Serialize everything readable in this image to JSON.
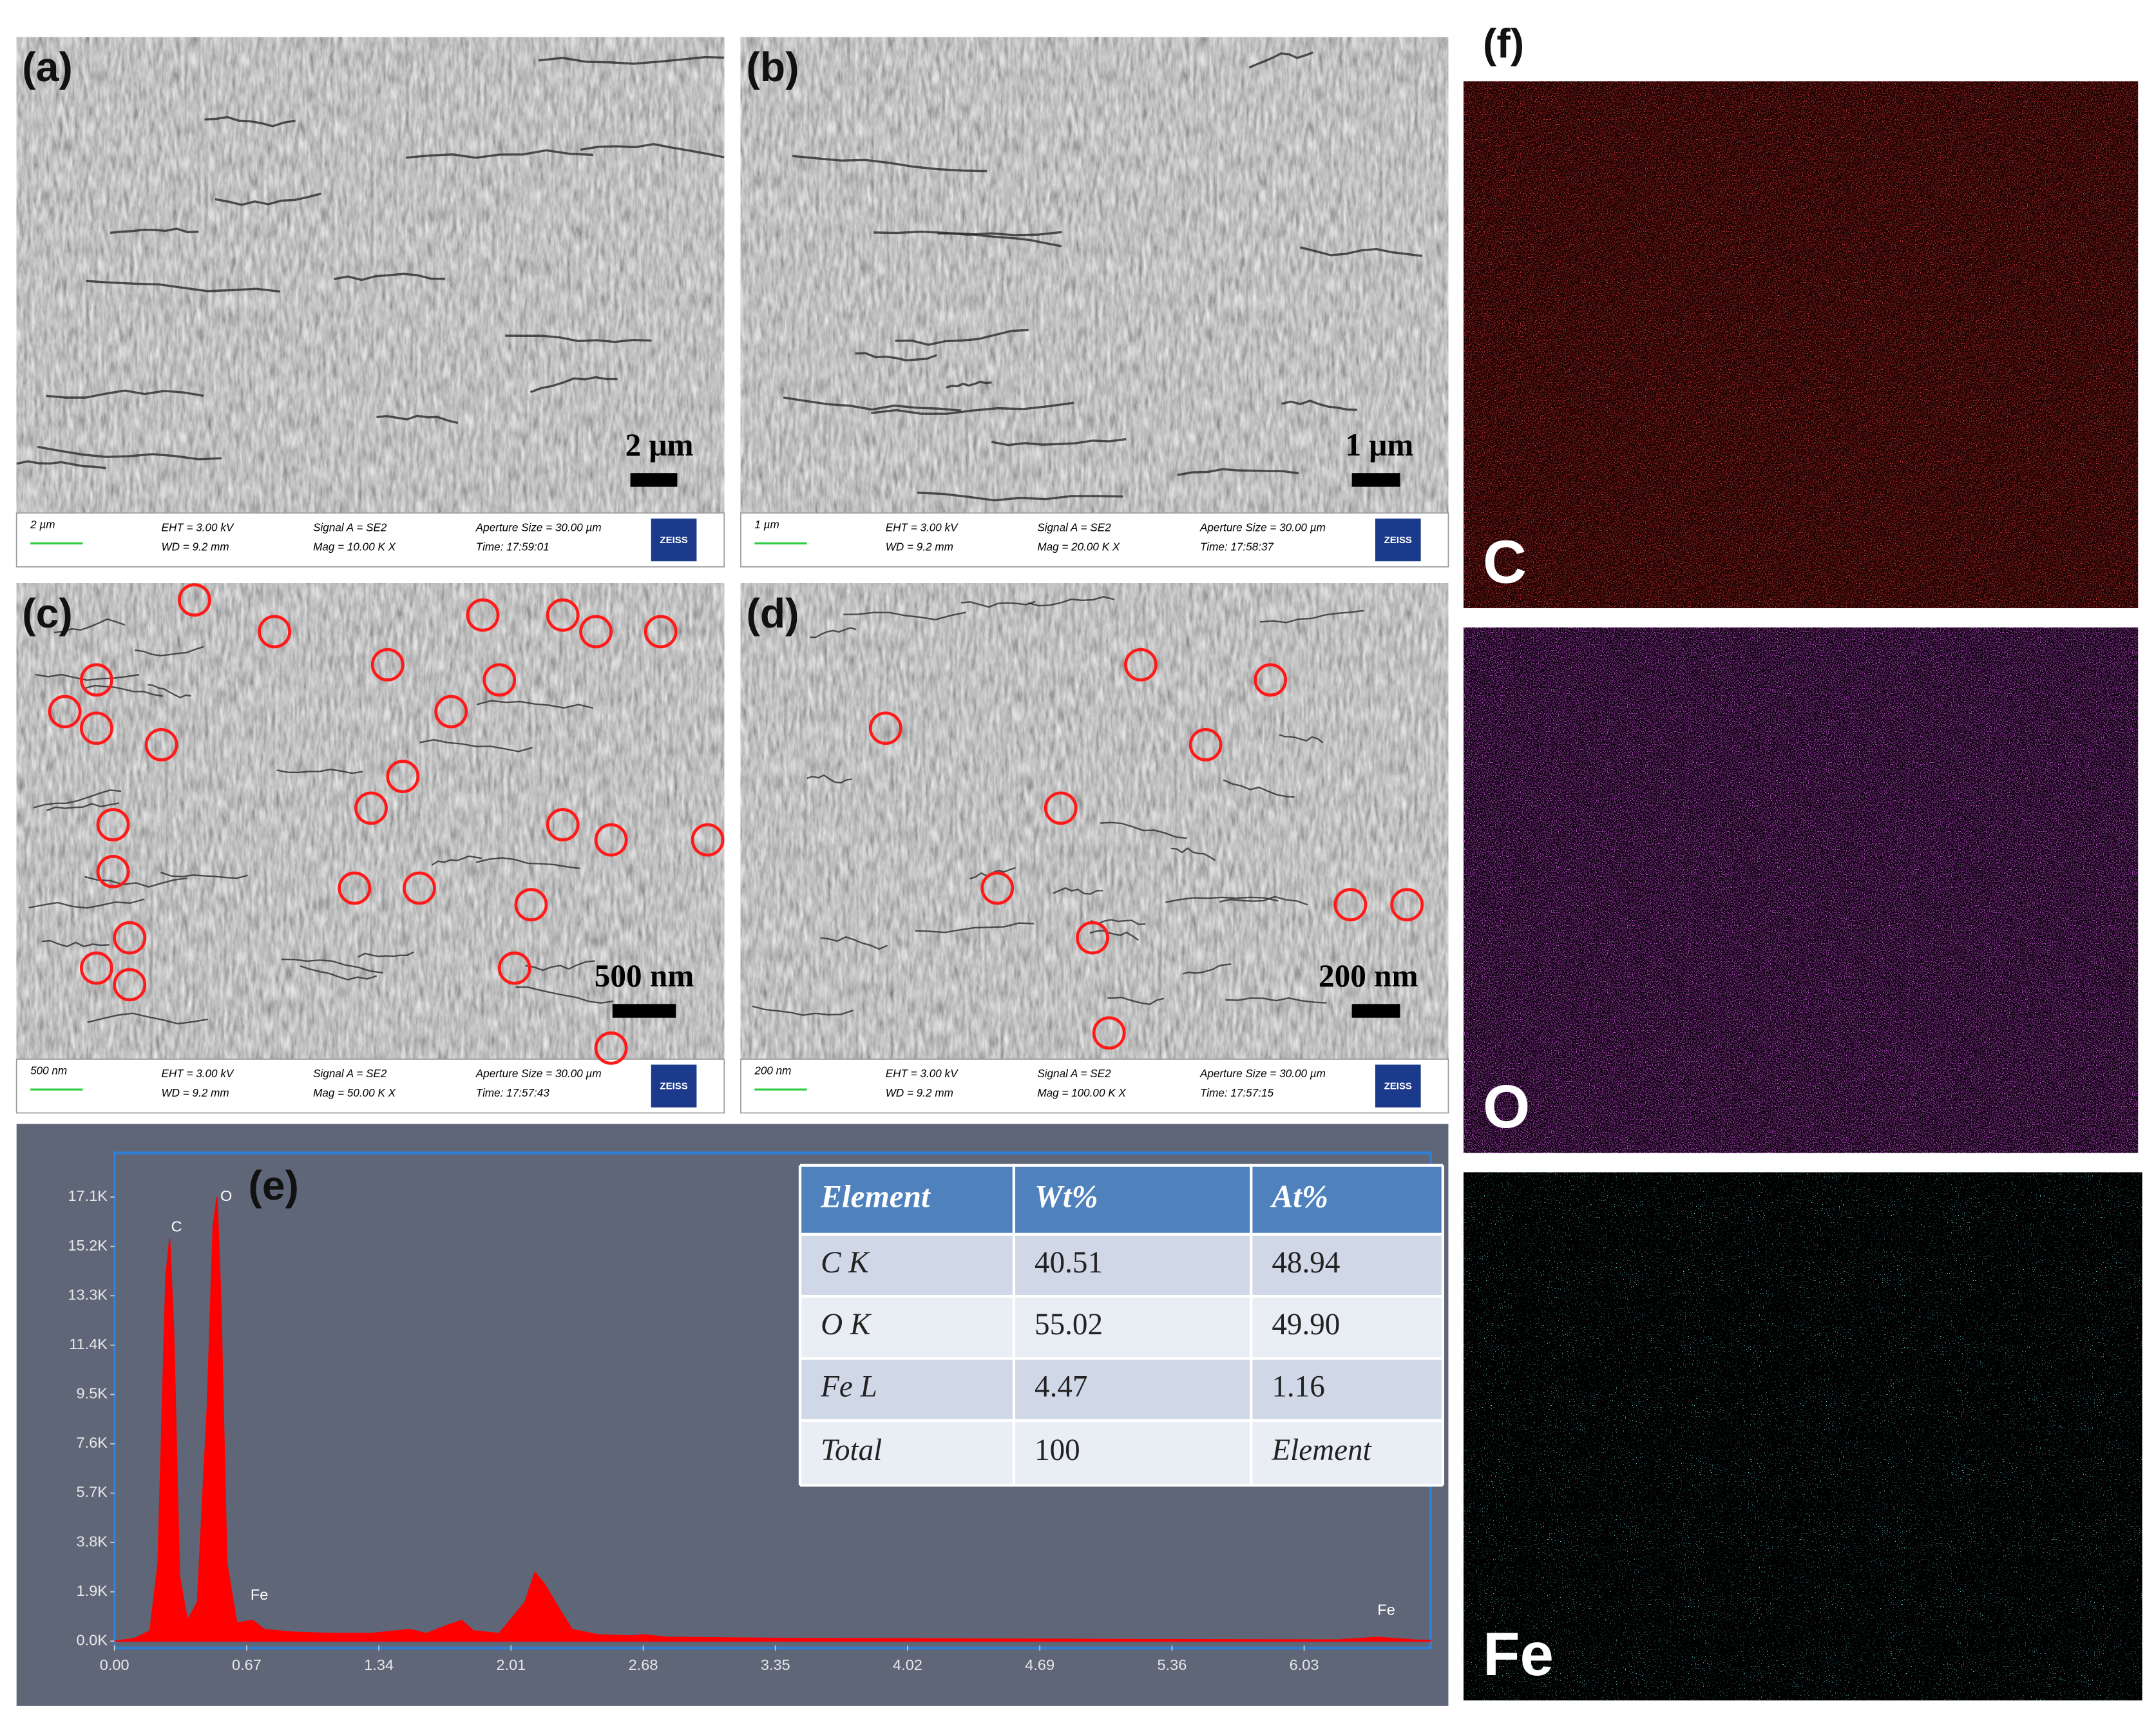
{
  "figure": {
    "panels": [
      {
        "label": "(a)",
        "scale_bar": "2 μm",
        "info": {
          "scale": "2 µm",
          "eht": "EHT =  3.00 kV",
          "wd": "WD =  9.2 mm",
          "signal": "Signal A = SE2",
          "mag": "Mag =  10.00 K X",
          "aperture": "Aperture Size = 30.00 µm",
          "time": "Time: 17:59:01",
          "brand": "ZEISS"
        }
      },
      {
        "label": "(b)",
        "scale_bar": "1 μm",
        "info": {
          "scale": "1 µm",
          "eht": "EHT =  3.00 kV",
          "wd": "WD =  9.2 mm",
          "signal": "Signal A = SE2",
          "mag": "Mag =  20.00 K X",
          "aperture": "Aperture Size = 30.00 µm",
          "time": "Time: 17:58:37",
          "brand": "ZEISS"
        }
      },
      {
        "label": "(c)",
        "scale_bar": "500 nm",
        "info": {
          "scale": "500 nm",
          "eht": "EHT =  3.00 kV",
          "wd": "WD =  9.2 mm",
          "signal": "Signal A = SE2",
          "mag": "Mag =  50.00 K X",
          "aperture": "Aperture Size = 30.00 µm",
          "time": "Time: 17:57:43",
          "brand": "ZEISS"
        }
      },
      {
        "label": "(d)",
        "scale_bar": "200 nm",
        "info": {
          "scale": "200 nm",
          "eht": "EHT =  3.00 kV",
          "wd": "WD =  9.2 mm",
          "signal": "Signal A = SE2",
          "mag": "Mag =  100.00 K X",
          "aperture": "Aperture Size = 30.00 µm",
          "time": "Time: 17:57:15",
          "brand": "ZEISS"
        }
      }
    ],
    "spectrum": {
      "type": "area",
      "label": "(e)",
      "color": "#ff0000",
      "x": [
        0,
        0.1,
        0.18,
        0.22,
        0.26,
        0.28,
        0.3,
        0.33,
        0.37,
        0.42,
        0.47,
        0.5,
        0.52,
        0.54,
        0.57,
        0.62,
        0.7,
        0.76,
        0.9,
        1.1,
        1.3,
        1.5,
        1.58,
        1.7,
        1.76,
        1.82,
        1.95,
        2.08,
        2.13,
        2.18,
        2.25,
        2.32,
        2.45,
        2.62,
        2.68,
        2.8,
        3.5,
        4.5,
        5.5,
        6.2,
        6.35,
        6.4,
        6.45,
        6.6,
        6.67
      ],
      "values": [
        0,
        100,
        400,
        3000,
        14000,
        15500,
        12000,
        2500,
        800,
        1500,
        9000,
        16000,
        17100,
        13000,
        3000,
        700,
        800,
        450,
        350,
        300,
        300,
        450,
        300,
        650,
        800,
        400,
        300,
        1500,
        2650,
        2200,
        1300,
        450,
        250,
        200,
        250,
        150,
        100,
        80,
        60,
        50,
        120,
        150,
        120,
        40,
        30
      ],
      "xlim": [
        0,
        6.67
      ],
      "ylim": [
        0,
        18800
      ],
      "xticks": [
        {
          "value": 0,
          "label": "0.00"
        },
        0.67,
        1.34,
        2.01,
        2.68,
        3.35,
        4.02,
        4.69,
        5.36,
        6.03
      ],
      "yticks": [
        {
          "value": 0,
          "label": "0.0K"
        },
        {
          "value": 1900,
          "label": "1.9K"
        },
        {
          "value": 3800,
          "label": "3.8K"
        },
        {
          "value": 5700,
          "label": "5.7K"
        },
        {
          "value": 7600,
          "label": "7.6K"
        },
        {
          "value": 9500,
          "label": "9.5K"
        },
        {
          "value": 11400,
          "label": "11.4K"
        },
        {
          "value": 13300,
          "label": "13.3K"
        },
        {
          "value": 15200,
          "label": "15.2K"
        },
        {
          "value": 17100,
          "label": "17.1K"
        }
      ],
      "peak_labels": [
        "C",
        "O",
        "Fe",
        "Fe"
      ]
    },
    "table": {
      "header": [
        "Element",
        "Wt%",
        "At%"
      ],
      "rows": [
        [
          "C K",
          "40.51",
          "48.94"
        ],
        [
          "O K",
          "55.02",
          "49.90"
        ],
        [
          "Fe L",
          "4.47",
          "1.16"
        ],
        [
          "Total",
          "100",
          "Element"
        ]
      ]
    },
    "maps": {
      "label": "(f)",
      "elements": [
        "C",
        "O",
        "Fe"
      ]
    }
  }
}
